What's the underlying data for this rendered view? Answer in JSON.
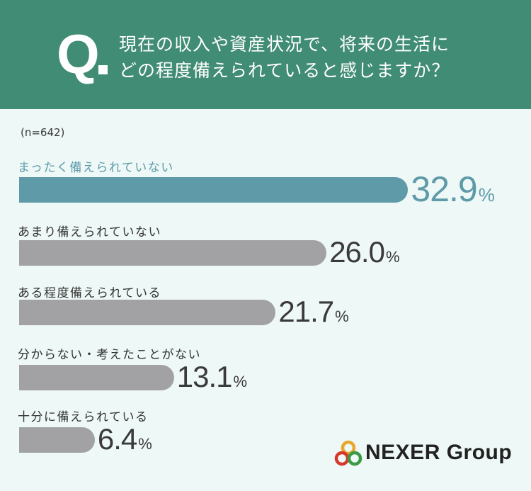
{
  "header": {
    "q_mark": "Q",
    "question_line1": "現在の収入や資産状況で、将来の生活に",
    "question_line2": "どの程度備えられていると感じますか？"
  },
  "sample_size": "(n=642)",
  "colors": {
    "header_bg": "#418c74",
    "background": "#eef8f6",
    "highlight_bar": "#5e9aa8",
    "default_bar": "#a2a2a5"
  },
  "logo": {
    "text": "NEXER Group",
    "mark_colors": [
      "#e8a72a",
      "#d6372b",
      "#3b9a43"
    ]
  },
  "chart_data": {
    "type": "bar",
    "orientation": "horizontal",
    "title": "現在の収入や資産状況で、将来の生活にどの程度備えられていると感じますか？",
    "categories": [
      "まったく備えられていない",
      "あまり備えられていない",
      "ある程度備えられている",
      "分からない・考えたことがない",
      "十分に備えられている"
    ],
    "values": [
      32.9,
      26.0,
      21.7,
      13.1,
      6.4
    ],
    "value_labels": [
      "32.9",
      "26.0",
      "21.7",
      "13.1",
      "6.4"
    ],
    "unit": "%",
    "highlight_index": 0,
    "xlabel": "",
    "ylabel": "",
    "grid": false,
    "legend": "none"
  }
}
